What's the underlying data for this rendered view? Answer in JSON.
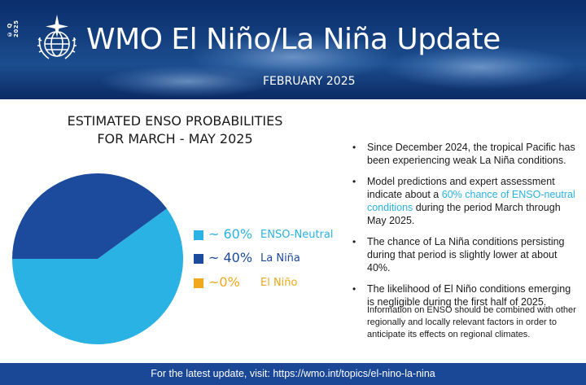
{
  "header": {
    "side_code": "© Q 2025",
    "title": "WMO El Niño/La Niña Update",
    "subtitle": "FEBRUARY 2025",
    "logo_icon": "wmo-emblem-icon"
  },
  "chart_data": {
    "type": "pie",
    "title_line1": "ESTIMATED ENSO PROBABILITIES",
    "title_line2": "FOR MARCH - MAY 2025",
    "slices": [
      {
        "name": "ENSO-Neutral",
        "value": 60,
        "value_label": "~ 60%",
        "color": "#29b2e3"
      },
      {
        "name": "La Niña",
        "value": 40,
        "value_label": "~ 40%",
        "color": "#1c4a9c"
      },
      {
        "name": "El Niño",
        "value": 0,
        "value_label": "~0%",
        "color": "#f0a81c"
      }
    ],
    "legend_position": "right"
  },
  "bullets": [
    {
      "pre": "Since December 2024, the tropical Pacific has been experiencing weak La Niña conditions.",
      "highlight": "",
      "post": ""
    },
    {
      "pre": "Model predictions and expert assessment indicate about a ",
      "highlight": "60% chance of ENSO-neutral conditions",
      "post": " during the period March through May 2025."
    },
    {
      "pre": "The chance of La Niña conditions persisting during that period is slightly lower at about 40%.",
      "highlight": "",
      "post": ""
    },
    {
      "pre": "The likelihood of El Niño conditions emerging is negligible during the first half of 2025.",
      "highlight": "",
      "post": ""
    }
  ],
  "note": "Information on ENSO should be combined with other regionally and locally relevant factors in order to anticipate its effects on regional climates.",
  "footer": {
    "text": "For the latest update, visit: https://wmo.int/topics/el-nino-la-nina"
  },
  "colors": {
    "accent": "#29b2e3",
    "header_bg": "#0b2d6b",
    "footer_bg": "#1a4796"
  }
}
